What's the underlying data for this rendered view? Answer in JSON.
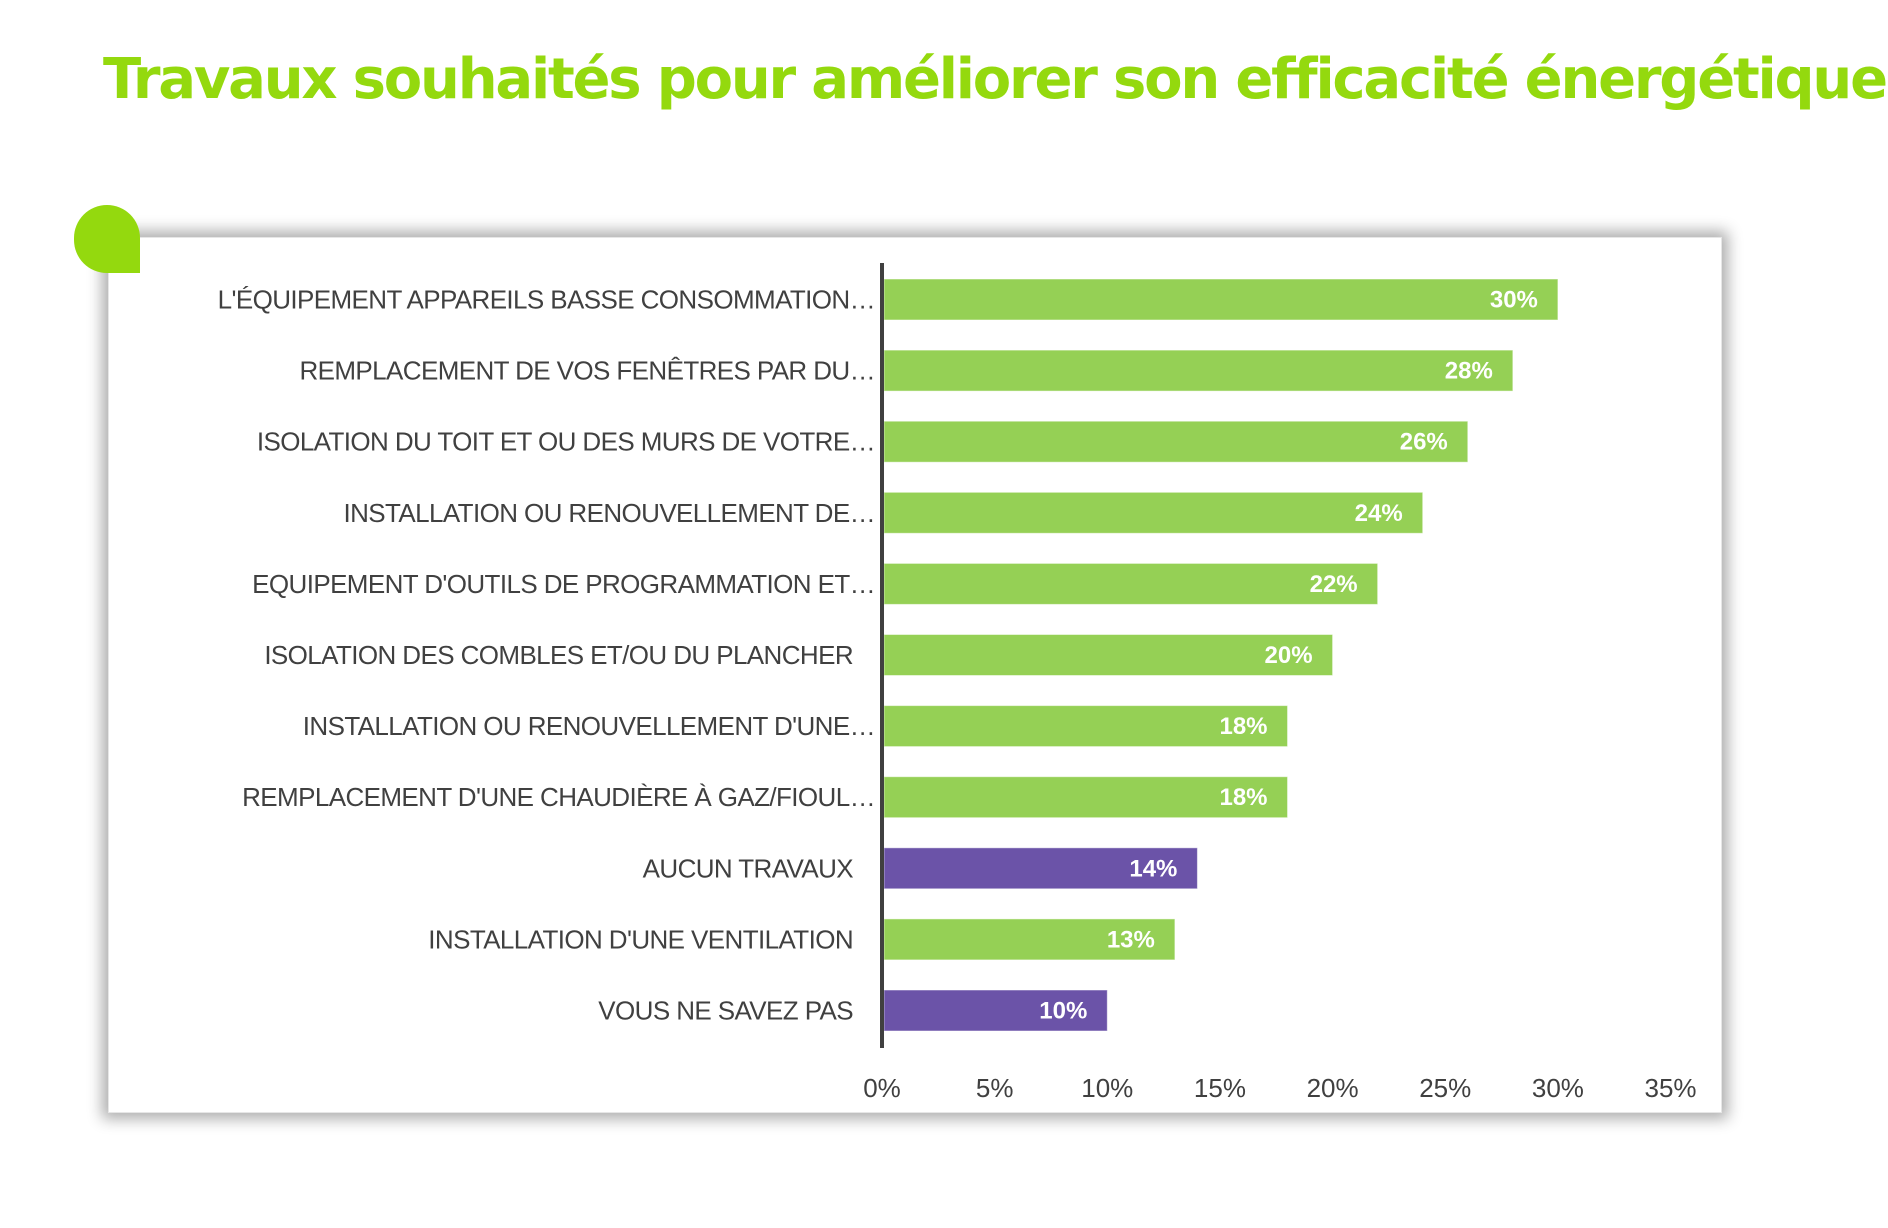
{
  "page": {
    "title": "Travaux souhaités pour améliorer son efficacité énergétique"
  },
  "colors": {
    "title": "#94d90e",
    "accent_blob": "#94d90e",
    "bar_green": "#95d055",
    "bar_purple": "#6b53a8",
    "axis": "#404040",
    "text": "#404040",
    "value_text": "#ffffff"
  },
  "chart_data": {
    "type": "bar",
    "orientation": "horizontal",
    "title": "Travaux souhaités pour améliorer son efficacité énergétique",
    "xlabel": "",
    "ylabel": "",
    "xlim": [
      0,
      35
    ],
    "x_ticks": [
      0,
      5,
      10,
      15,
      20,
      25,
      30,
      35
    ],
    "x_tick_labels": [
      "0%",
      "5%",
      "10%",
      "15%",
      "20%",
      "25%",
      "30%",
      "35%"
    ],
    "grid": false,
    "legend": "none",
    "categories": [
      "L'ÉQUIPEMENT APPAREILS BASSE CONSOMMATION...",
      "REMPLACEMENT DE VOS FENÊTRES PAR DU...",
      "ISOLATION DU TOIT ET OU DES MURS DE VOTRE...",
      "INSTALLATION OU RENOUVELLEMENT DE...",
      "EQUIPEMENT D'OUTILS DE PROGRAMMATION ET...",
      "ISOLATION DES COMBLES ET/OU DU PLANCHER",
      "INSTALLATION OU RENOUVELLEMENT D'UNE...",
      "REMPLACEMENT D'UNE CHAUDIÈRE À GAZ/FIOUL...",
      "AUCUN TRAVAUX",
      "INSTALLATION D'UNE VENTILATION",
      "VOUS NE SAVEZ PAS"
    ],
    "values": [
      30,
      28,
      26,
      24,
      22,
      20,
      18,
      18,
      14,
      13,
      10
    ],
    "value_labels": [
      "30%",
      "28%",
      "26%",
      "24%",
      "22%",
      "20%",
      "18%",
      "18%",
      "14%",
      "13%",
      "10%"
    ],
    "bar_groups": [
      "green",
      "green",
      "green",
      "green",
      "green",
      "green",
      "green",
      "green",
      "purple",
      "green",
      "purple"
    ],
    "unit": "%"
  }
}
